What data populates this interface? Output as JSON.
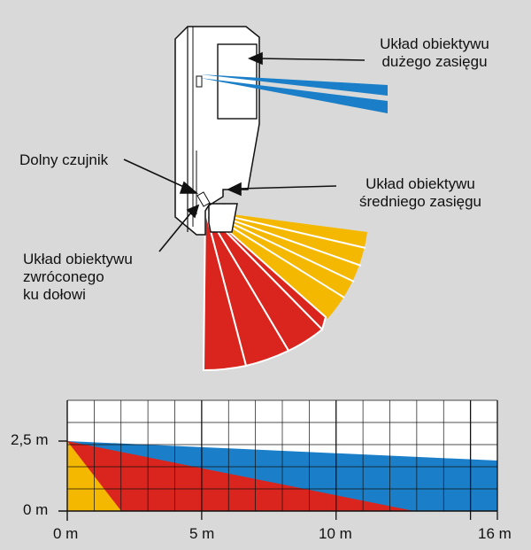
{
  "labels": {
    "long_range": [
      "Układ obiektywu",
      "dużego zasięgu"
    ],
    "lower_sensor": "Dolny czujnik",
    "medium_range": [
      "Układ obiektywu",
      "średniego zasięgu"
    ],
    "downward": [
      "Układ obiektywu",
      "zwróconego",
      "ku dołowi"
    ]
  },
  "axis": {
    "y_ticks": [
      "2,5 m",
      "0 m"
    ],
    "x_ticks": [
      "0 m",
      "5 m",
      "10 m",
      "16 m"
    ]
  },
  "zones": {
    "long_range": {
      "name": "long range",
      "color": "#1a7fc8"
    },
    "medium_range": {
      "name": "medium range",
      "color": "#d9251d"
    },
    "downward": {
      "name": "downward",
      "color": "#f5b800"
    }
  },
  "side_view": {
    "mount_height_m": 2.5,
    "x_range_m": [
      0,
      16
    ],
    "long_range_end_height_m": 1.8,
    "medium_range_end_m": 13,
    "downward_end_m": 2
  }
}
